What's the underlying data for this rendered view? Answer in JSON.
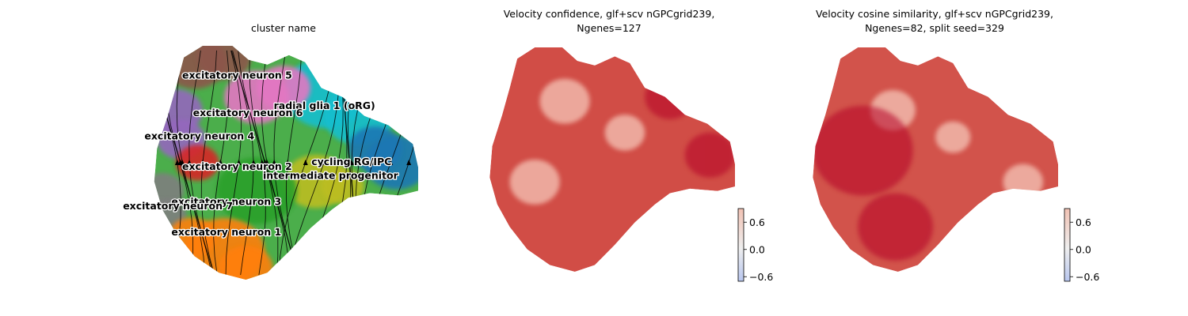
{
  "chart_data": [
    {
      "type": "scatter",
      "title": "cluster name",
      "embedding": "umap",
      "streamlines": true,
      "legend": "on data",
      "grid": false,
      "clusters": [
        {
          "name": "excitatory neuron 5",
          "color": "#8c564b",
          "label_pos": [
            0.3,
            0.86
          ]
        },
        {
          "name": "radial glia 1 (oRG)",
          "color": "#17becf",
          "label_pos": [
            0.64,
            0.73
          ]
        },
        {
          "name": "excitatory neuron 6",
          "color": "#e377c2",
          "label_pos": [
            0.34,
            0.7
          ]
        },
        {
          "name": "excitatory neuron 4",
          "color": "#9467bd",
          "label_pos": [
            0.16,
            0.6
          ]
        },
        {
          "name": "excitatory neuron 2",
          "color": "#d62728",
          "label_pos": [
            0.3,
            0.47
          ]
        },
        {
          "name": "cycling RG/IPC",
          "color": "#1f77b4",
          "label_pos": [
            0.78,
            0.49
          ]
        },
        {
          "name": "intermediate progenitor",
          "color": "#bcbd22",
          "label_pos": [
            0.6,
            0.43
          ]
        },
        {
          "name": "excitatory neuron 3",
          "color": "#2ca02c",
          "label_pos": [
            0.26,
            0.32
          ]
        },
        {
          "name": "excitatory neuron 7",
          "color": "#7f7f7f",
          "label_pos": [
            0.08,
            0.3
          ]
        },
        {
          "name": "excitatory neuron 1",
          "color": "#ff7f0e",
          "label_pos": [
            0.26,
            0.19
          ]
        }
      ]
    },
    {
      "type": "scatter",
      "title": "Velocity confidence, glf+scv nGPCgrid239,\nNgenes=127",
      "colormap": "coolwarm",
      "colorbar": {
        "ticks": [
          "0.6",
          "0.0",
          "−0.6"
        ],
        "tick_values": [
          0.6,
          0.0,
          -0.6
        ],
        "range": [
          -0.7,
          0.9
        ]
      },
      "grid": false
    },
    {
      "type": "scatter",
      "title": "Velocity cosine similarity, glf+scv nGPCgrid239,\nNgenes=82, split seed=329",
      "colormap": "coolwarm",
      "colorbar": {
        "ticks": [
          "0.6",
          "0.0",
          "−0.6"
        ],
        "tick_values": [
          0.6,
          0.0,
          -0.6
        ],
        "range": [
          -0.7,
          0.9
        ]
      },
      "grid": false
    }
  ]
}
